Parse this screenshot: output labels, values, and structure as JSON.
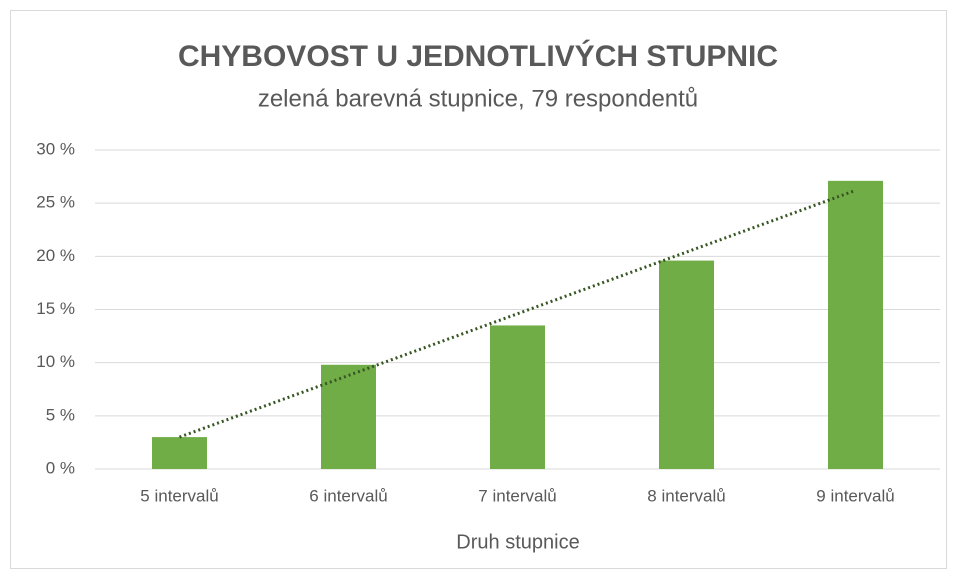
{
  "chart_data": {
    "type": "bar",
    "title": "CHYBOVOST U JEDNOTLIVÝCH STUPNIC",
    "subtitle": "zelená barevná stupnice, 79 respondentů",
    "x_label": "Druh stupnice",
    "categories": [
      "5 intervalů",
      "6 intervalů",
      "7 intervalů",
      "8 intervalů",
      "9 intervalů"
    ],
    "values": [
      3.0,
      9.8,
      13.5,
      19.6,
      27.1
    ],
    "color": "#70ad47",
    "trendline": {
      "type": "linear",
      "color": "#375623"
    },
    "ylim": [
      0,
      30
    ],
    "yticks": [
      {
        "value": 0,
        "label": "0 %"
      },
      {
        "value": 5,
        "label": "5 %"
      },
      {
        "value": 10,
        "label": "10 %"
      },
      {
        "value": 15,
        "label": "15 %"
      },
      {
        "value": 20,
        "label": "20 %"
      },
      {
        "value": 25,
        "label": "25 %"
      },
      {
        "value": 30,
        "label": "30 %"
      }
    ],
    "grid": true
  }
}
